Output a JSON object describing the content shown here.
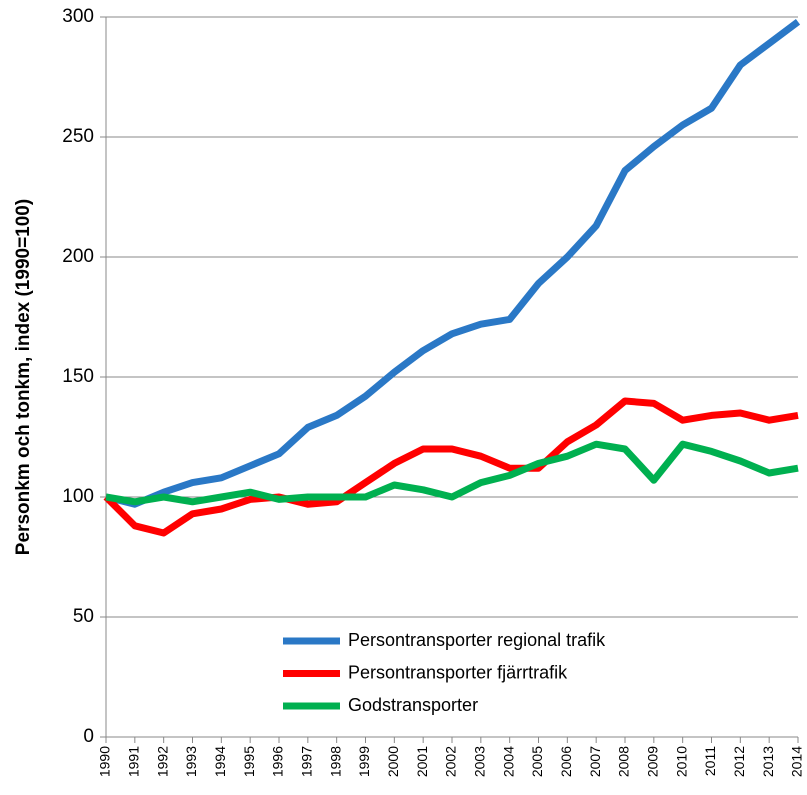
{
  "chart_data": {
    "type": "line",
    "y_label": "Personkm och tonkm, index (1990=100)",
    "categories": [
      "1990",
      "1991",
      "1992",
      "1993",
      "1994",
      "1995",
      "1996",
      "1997",
      "1998",
      "1999",
      "2000",
      "2001",
      "2002",
      "2003",
      "2004",
      "2005",
      "2006",
      "2007",
      "2008",
      "2009",
      "2010",
      "2011",
      "2012",
      "2013",
      "2014"
    ],
    "series": [
      {
        "name": "Persontransporter regional trafik",
        "color": "#2a78c6",
        "values": [
          100,
          97,
          102,
          106,
          108,
          113,
          118,
          129,
          134,
          142,
          152,
          161,
          168,
          172,
          174,
          189,
          200,
          213,
          236,
          246,
          255,
          262,
          280,
          289,
          298
        ]
      },
      {
        "name": "Persontransporter fjärrtrafik",
        "color": "#ff0000",
        "values": [
          100,
          88,
          85,
          93,
          95,
          99,
          100,
          97,
          98,
          106,
          114,
          120,
          120,
          117,
          112,
          112,
          123,
          130,
          140,
          139,
          132,
          134,
          135,
          132,
          134
        ]
      },
      {
        "name": "Godstransporter",
        "color": "#00b050",
        "values": [
          100,
          98,
          100,
          98,
          100,
          102,
          99,
          100,
          100,
          100,
          105,
          103,
          100,
          106,
          109,
          114,
          117,
          122,
          120,
          107,
          122,
          119,
          115,
          110,
          112
        ]
      }
    ],
    "ylim": [
      0,
      300
    ],
    "yticks": [
      0,
      50,
      100,
      150,
      200,
      250,
      300
    ],
    "grid": true,
    "legend": "bottom"
  }
}
